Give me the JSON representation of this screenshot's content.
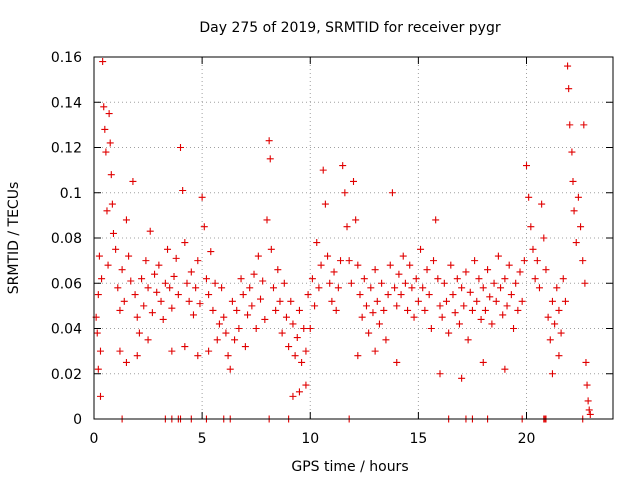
{
  "chart_data": {
    "type": "scatter",
    "title": "Day 275 of 2019, SRMTID for receiver pygr",
    "xlabel": "GPS time / hours",
    "ylabel": "SRMTID / TECUs",
    "xlim": [
      0,
      24
    ],
    "ylim": [
      0,
      0.16
    ],
    "xticks": [
      0,
      5,
      10,
      15,
      20
    ],
    "xtick_labels": [
      "0",
      "5",
      "10",
      "15",
      "20"
    ],
    "yticks": [
      0,
      0.02,
      0.04,
      0.06,
      0.08,
      0.1,
      0.12,
      0.14,
      0.16
    ],
    "ytick_labels": [
      "0",
      "0.02",
      "0.04",
      "0.06",
      "0.08",
      "0.1",
      "0.12",
      "0.14",
      "0.16"
    ],
    "grid": true,
    "marker": "plus",
    "marker_color": "#e00000",
    "series": [
      {
        "name": "SRMTID",
        "points": [
          [
            0.1,
            0.045
          ],
          [
            0.15,
            0.038
          ],
          [
            0.2,
            0.055
          ],
          [
            0.25,
            0.072
          ],
          [
            0.3,
            0.03
          ],
          [
            0.35,
            0.062
          ],
          [
            0.4,
            0.158
          ],
          [
            0.45,
            0.138
          ],
          [
            0.5,
            0.128
          ],
          [
            0.55,
            0.118
          ],
          [
            0.6,
            0.092
          ],
          [
            0.65,
            0.068
          ],
          [
            0.7,
            0.135
          ],
          [
            0.75,
            0.122
          ],
          [
            0.8,
            0.108
          ],
          [
            0.85,
            0.095
          ],
          [
            0.9,
            0.082
          ],
          [
            0.3,
            0.01
          ],
          [
            0.2,
            0.022
          ],
          [
            1.0,
            0.075
          ],
          [
            1.1,
            0.058
          ],
          [
            1.2,
            0.048
          ],
          [
            1.3,
            0.066
          ],
          [
            1.4,
            0.052
          ],
          [
            1.5,
            0.088
          ],
          [
            1.6,
            0.072
          ],
          [
            1.7,
            0.061
          ],
          [
            1.8,
            0.105
          ],
          [
            1.9,
            0.055
          ],
          [
            2.0,
            0.045
          ],
          [
            2.1,
            0.038
          ],
          [
            2.2,
            0.062
          ],
          [
            2.3,
            0.05
          ],
          [
            2.4,
            0.07
          ],
          [
            2.5,
            0.058
          ],
          [
            2.6,
            0.083
          ],
          [
            2.7,
            0.047
          ],
          [
            2.8,
            0.064
          ],
          [
            2.9,
            0.056
          ],
          [
            1.2,
            0.03
          ],
          [
            1.5,
            0.025
          ],
          [
            2.0,
            0.028
          ],
          [
            2.5,
            0.035
          ],
          [
            3.0,
            0.068
          ],
          [
            3.1,
            0.052
          ],
          [
            3.2,
            0.044
          ],
          [
            3.3,
            0.06
          ],
          [
            3.4,
            0.075
          ],
          [
            3.5,
            0.058
          ],
          [
            3.6,
            0.049
          ],
          [
            3.7,
            0.063
          ],
          [
            3.8,
            0.071
          ],
          [
            3.9,
            0.055
          ],
          [
            4.0,
            0.12
          ],
          [
            4.1,
            0.101
          ],
          [
            4.2,
            0.078
          ],
          [
            4.3,
            0.06
          ],
          [
            4.4,
            0.052
          ],
          [
            4.5,
            0.065
          ],
          [
            4.6,
            0.046
          ],
          [
            4.7,
            0.058
          ],
          [
            4.8,
            0.07
          ],
          [
            4.9,
            0.051
          ],
          [
            5.0,
            0.098
          ],
          [
            5.1,
            0.085
          ],
          [
            5.2,
            0.062
          ],
          [
            5.3,
            0.055
          ],
          [
            5.4,
            0.074
          ],
          [
            5.5,
            0.048
          ],
          [
            5.6,
            0.06
          ],
          [
            5.7,
            0.035
          ],
          [
            5.8,
            0.042
          ],
          [
            5.9,
            0.058
          ],
          [
            3.6,
            0.03
          ],
          [
            4.2,
            0.032
          ],
          [
            4.8,
            0.028
          ],
          [
            5.3,
            0.03
          ],
          [
            6.0,
            0.045
          ],
          [
            6.1,
            0.038
          ],
          [
            6.2,
            0.028
          ],
          [
            6.3,
            0.022
          ],
          [
            6.4,
            0.052
          ],
          [
            6.5,
            0.035
          ],
          [
            6.6,
            0.048
          ],
          [
            6.7,
            0.04
          ],
          [
            6.8,
            0.062
          ],
          [
            6.9,
            0.055
          ],
          [
            7.0,
            0.032
          ],
          [
            7.1,
            0.046
          ],
          [
            7.2,
            0.058
          ],
          [
            7.3,
            0.05
          ],
          [
            7.4,
            0.064
          ],
          [
            7.5,
            0.04
          ],
          [
            7.6,
            0.072
          ],
          [
            7.7,
            0.053
          ],
          [
            7.8,
            0.061
          ],
          [
            7.9,
            0.044
          ],
          [
            8.0,
            0.088
          ],
          [
            8.1,
            0.123
          ],
          [
            8.15,
            0.115
          ],
          [
            8.2,
            0.075
          ],
          [
            8.3,
            0.058
          ],
          [
            8.4,
            0.048
          ],
          [
            8.5,
            0.066
          ],
          [
            8.6,
            0.052
          ],
          [
            8.7,
            0.038
          ],
          [
            8.8,
            0.06
          ],
          [
            8.9,
            0.045
          ],
          [
            9.0,
            0.032
          ],
          [
            9.1,
            0.052
          ],
          [
            9.2,
            0.042
          ],
          [
            9.3,
            0.028
          ],
          [
            9.4,
            0.036
          ],
          [
            9.5,
            0.048
          ],
          [
            9.6,
            0.025
          ],
          [
            9.7,
            0.04
          ],
          [
            9.8,
            0.03
          ],
          [
            9.2,
            0.01
          ],
          [
            9.5,
            0.012
          ],
          [
            9.8,
            0.015
          ],
          [
            9.9,
            0.055
          ],
          [
            10.0,
            0.04
          ],
          [
            10.1,
            0.062
          ],
          [
            10.2,
            0.05
          ],
          [
            10.3,
            0.078
          ],
          [
            10.4,
            0.058
          ],
          [
            10.5,
            0.068
          ],
          [
            10.6,
            0.11
          ],
          [
            10.7,
            0.095
          ],
          [
            10.8,
            0.072
          ],
          [
            10.9,
            0.06
          ],
          [
            11.0,
            0.052
          ],
          [
            11.1,
            0.065
          ],
          [
            11.2,
            0.048
          ],
          [
            11.3,
            0.058
          ],
          [
            11.4,
            0.07
          ],
          [
            11.5,
            0.112
          ],
          [
            11.6,
            0.1
          ],
          [
            11.7,
            0.085
          ],
          [
            11.8,
            0.07
          ],
          [
            11.9,
            0.06
          ],
          [
            12.0,
            0.105
          ],
          [
            12.1,
            0.088
          ],
          [
            12.2,
            0.068
          ],
          [
            12.3,
            0.055
          ],
          [
            12.4,
            0.045
          ],
          [
            12.5,
            0.062
          ],
          [
            12.6,
            0.05
          ],
          [
            12.7,
            0.038
          ],
          [
            12.8,
            0.058
          ],
          [
            12.9,
            0.047
          ],
          [
            13.0,
            0.066
          ],
          [
            13.1,
            0.052
          ],
          [
            13.2,
            0.042
          ],
          [
            13.3,
            0.06
          ],
          [
            13.4,
            0.048
          ],
          [
            13.5,
            0.035
          ],
          [
            13.6,
            0.055
          ],
          [
            13.7,
            0.068
          ],
          [
            13.8,
            0.1
          ],
          [
            13.9,
            0.058
          ],
          [
            14.0,
            0.05
          ],
          [
            14.1,
            0.064
          ],
          [
            14.2,
            0.055
          ],
          [
            14.3,
            0.072
          ],
          [
            14.4,
            0.06
          ],
          [
            14.5,
            0.048
          ],
          [
            14.6,
            0.068
          ],
          [
            14.7,
            0.058
          ],
          [
            14.8,
            0.045
          ],
          [
            14.9,
            0.062
          ],
          [
            12.2,
            0.028
          ],
          [
            13.0,
            0.03
          ],
          [
            14.0,
            0.025
          ],
          [
            15.0,
            0.052
          ],
          [
            15.1,
            0.075
          ],
          [
            15.2,
            0.058
          ],
          [
            15.3,
            0.048
          ],
          [
            15.4,
            0.066
          ],
          [
            15.5,
            0.055
          ],
          [
            15.6,
            0.04
          ],
          [
            15.7,
            0.07
          ],
          [
            15.8,
            0.088
          ],
          [
            15.9,
            0.062
          ],
          [
            16.0,
            0.05
          ],
          [
            16.1,
            0.045
          ],
          [
            16.2,
            0.06
          ],
          [
            16.3,
            0.052
          ],
          [
            16.4,
            0.038
          ],
          [
            16.5,
            0.068
          ],
          [
            16.6,
            0.055
          ],
          [
            16.7,
            0.047
          ],
          [
            16.8,
            0.062
          ],
          [
            16.9,
            0.042
          ],
          [
            17.0,
            0.058
          ],
          [
            17.1,
            0.05
          ],
          [
            17.2,
            0.065
          ],
          [
            17.3,
            0.035
          ],
          [
            17.4,
            0.056
          ],
          [
            17.5,
            0.048
          ],
          [
            17.6,
            0.07
          ],
          [
            17.7,
            0.052
          ],
          [
            17.8,
            0.062
          ],
          [
            17.9,
            0.044
          ],
          [
            18.0,
            0.058
          ],
          [
            18.1,
            0.048
          ],
          [
            18.2,
            0.066
          ],
          [
            18.3,
            0.054
          ],
          [
            18.4,
            0.042
          ],
          [
            18.5,
            0.06
          ],
          [
            18.6,
            0.052
          ],
          [
            18.7,
            0.072
          ],
          [
            18.8,
            0.058
          ],
          [
            18.9,
            0.046
          ],
          [
            19.0,
            0.062
          ],
          [
            19.1,
            0.05
          ],
          [
            19.2,
            0.068
          ],
          [
            19.3,
            0.055
          ],
          [
            19.4,
            0.04
          ],
          [
            19.5,
            0.06
          ],
          [
            19.6,
            0.048
          ],
          [
            19.7,
            0.065
          ],
          [
            19.8,
            0.052
          ],
          [
            19.9,
            0.07
          ],
          [
            20.0,
            0.112
          ],
          [
            20.1,
            0.098
          ],
          [
            20.2,
            0.085
          ],
          [
            20.3,
            0.075
          ],
          [
            20.4,
            0.062
          ],
          [
            20.5,
            0.07
          ],
          [
            20.6,
            0.058
          ],
          [
            20.7,
            0.095
          ],
          [
            20.8,
            0.08
          ],
          [
            20.9,
            0.066
          ],
          [
            21.0,
            0.045
          ],
          [
            21.1,
            0.035
          ],
          [
            21.2,
            0.052
          ],
          [
            21.3,
            0.042
          ],
          [
            21.4,
            0.058
          ],
          [
            21.5,
            0.048
          ],
          [
            21.6,
            0.038
          ],
          [
            21.7,
            0.062
          ],
          [
            21.8,
            0.052
          ],
          [
            21.9,
            0.156
          ],
          [
            21.95,
            0.146
          ],
          [
            22.0,
            0.13
          ],
          [
            22.1,
            0.118
          ],
          [
            22.15,
            0.105
          ],
          [
            22.2,
            0.092
          ],
          [
            22.3,
            0.078
          ],
          [
            22.4,
            0.098
          ],
          [
            22.5,
            0.085
          ],
          [
            22.6,
            0.07
          ],
          [
            22.65,
            0.13
          ],
          [
            22.7,
            0.06
          ],
          [
            22.75,
            0.025
          ],
          [
            22.8,
            0.015
          ],
          [
            22.85,
            0.008
          ],
          [
            22.9,
            0.004
          ],
          [
            22.95,
            0.002
          ],
          [
            21.2,
            0.02
          ],
          [
            21.5,
            0.028
          ],
          [
            17.0,
            0.018
          ],
          [
            18.0,
            0.025
          ],
          [
            16.0,
            0.02
          ],
          [
            19.0,
            0.022
          ],
          [
            1.3,
            0.0
          ],
          [
            3.3,
            0.0
          ],
          [
            3.6,
            0.0
          ],
          [
            3.9,
            0.0
          ],
          [
            4.0,
            0.0
          ],
          [
            4.5,
            0.0
          ],
          [
            5.2,
            0.0
          ],
          [
            6.0,
            0.0
          ],
          [
            6.3,
            0.0
          ],
          [
            8.1,
            0.0
          ],
          [
            9.0,
            0.0
          ],
          [
            11.8,
            0.0
          ],
          [
            16.4,
            0.0
          ],
          [
            17.2,
            0.0
          ],
          [
            17.5,
            0.0
          ],
          [
            18.2,
            0.0
          ],
          [
            19.8,
            0.0
          ],
          [
            20.8,
            0.0
          ],
          [
            20.85,
            0.0
          ],
          [
            20.9,
            0.0
          ],
          [
            22.6,
            0.0
          ]
        ]
      }
    ]
  }
}
